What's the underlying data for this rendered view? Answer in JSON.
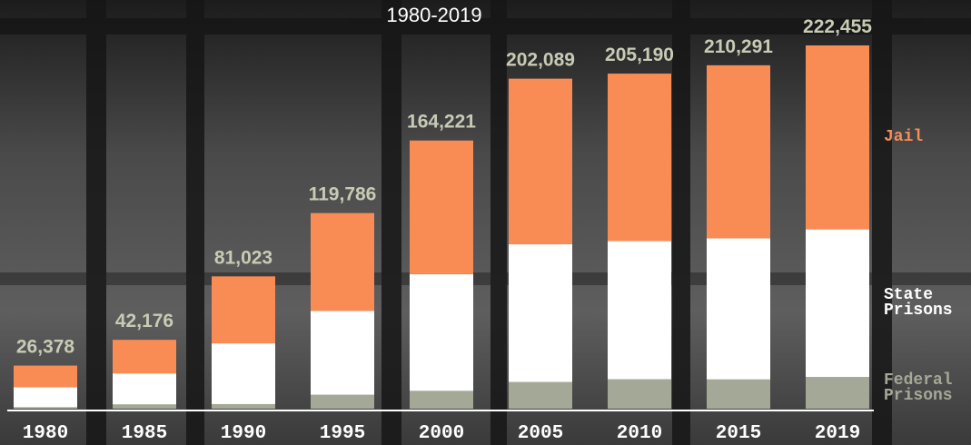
{
  "chart_data": {
    "type": "stacked-bar",
    "title": "1980-2019",
    "categories": [
      "1980",
      "1985",
      "1990",
      "1995",
      "2000",
      "2005",
      "2010",
      "2015",
      "2019"
    ],
    "series": [
      {
        "name": "Federal Prisons",
        "color": "#a4a896",
        "values": [
          900,
          2600,
          2800,
          8500,
          10900,
          16300,
          18000,
          17900,
          19400
        ]
      },
      {
        "name": "State Prisons",
        "color": "#ffffff",
        "values": [
          12300,
          19000,
          37200,
          51400,
          71500,
          84400,
          84600,
          86400,
          90400
        ]
      },
      {
        "name": "Jail",
        "color": "#f98b55",
        "values": [
          13178,
          20576,
          41023,
          59886,
          81821,
          101389,
          102590,
          105991,
          112655
        ]
      }
    ],
    "totals": [
      26378,
      42176,
      81023,
      119786,
      164221,
      202089,
      205190,
      210291,
      222455
    ],
    "total_labels": [
      "26,378",
      "42,176",
      "81,023",
      "119,786",
      "164,221",
      "202,089",
      "205,190",
      "210,291",
      "222,455"
    ]
  }
}
